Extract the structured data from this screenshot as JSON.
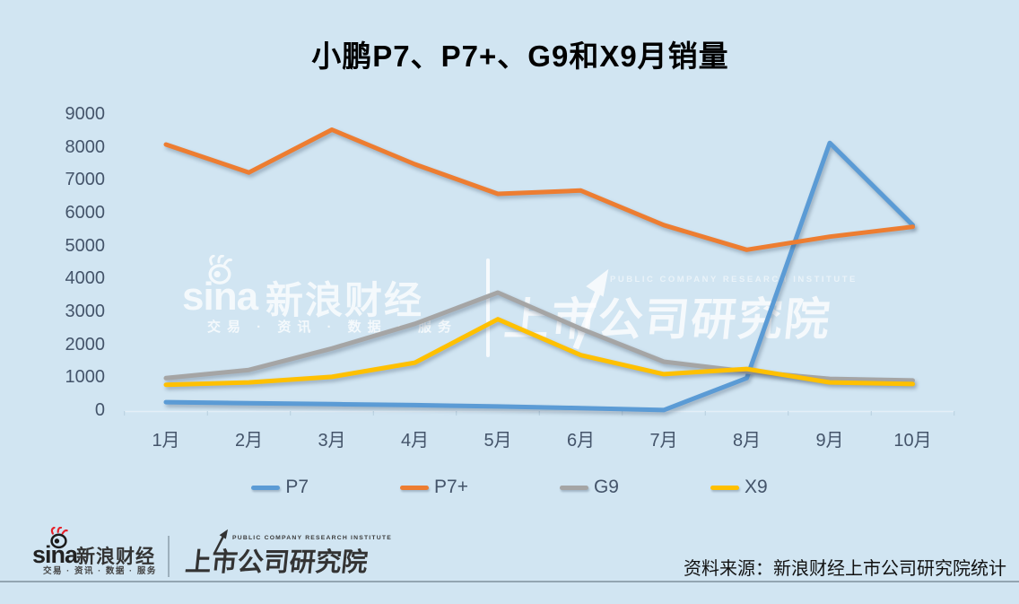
{
  "chart_data": {
    "type": "line",
    "title": "小鹏P7、P7+、G9和X9月销量",
    "categories": [
      "1月",
      "2月",
      "3月",
      "4月",
      "5月",
      "6月",
      "7月",
      "8月",
      "9月",
      "10月"
    ],
    "series": [
      {
        "name": "P7",
        "color": "#5B9BD5",
        "values": [
          270,
          240,
          210,
          180,
          140,
          90,
          30,
          1000,
          8150,
          5650
        ]
      },
      {
        "name": "P7+",
        "color": "#ED7D31",
        "values": [
          8100,
          7250,
          8550,
          7500,
          6600,
          6700,
          5650,
          4900,
          5300,
          5600
        ]
      },
      {
        "name": "G9",
        "color": "#A5A5A5",
        "values": [
          1000,
          1250,
          1900,
          2650,
          3600,
          2500,
          1500,
          1200,
          980,
          930
        ]
      },
      {
        "name": "X9",
        "color": "#FFC000",
        "values": [
          800,
          870,
          1040,
          1470,
          2790,
          1700,
          1120,
          1280,
          870,
          820
        ]
      }
    ],
    "ylim": [
      0,
      9000
    ],
    "ytick_step": 1000,
    "grid": false,
    "legend_position": "bottom"
  },
  "watermark": {
    "sina_wordmark": "sina",
    "sina_name": "新浪财经",
    "sina_tagline": "交易 · 资讯 · 数据 · 服务",
    "institute_en": "PUBLIC COMPANY RESEARCH INSTITUTE",
    "institute_name": "上市公司研究院"
  },
  "footer": {
    "sina_wordmark": "sina",
    "sina_name": "新浪财经",
    "sina_tagline": "交易 · 资讯 · 数据 · 服务",
    "institute_en": "PUBLIC COMPANY RESEARCH INSTITUTE",
    "institute_name": "上市公司研究院",
    "source": "资料来源：新浪财经上市公司研究院统计"
  },
  "colors": {
    "background": "#d1e5f2",
    "axis_text": "#44546A",
    "title_text": "#000000",
    "axis_line": "#e4eff7",
    "tick_mark": "#b6cede"
  }
}
